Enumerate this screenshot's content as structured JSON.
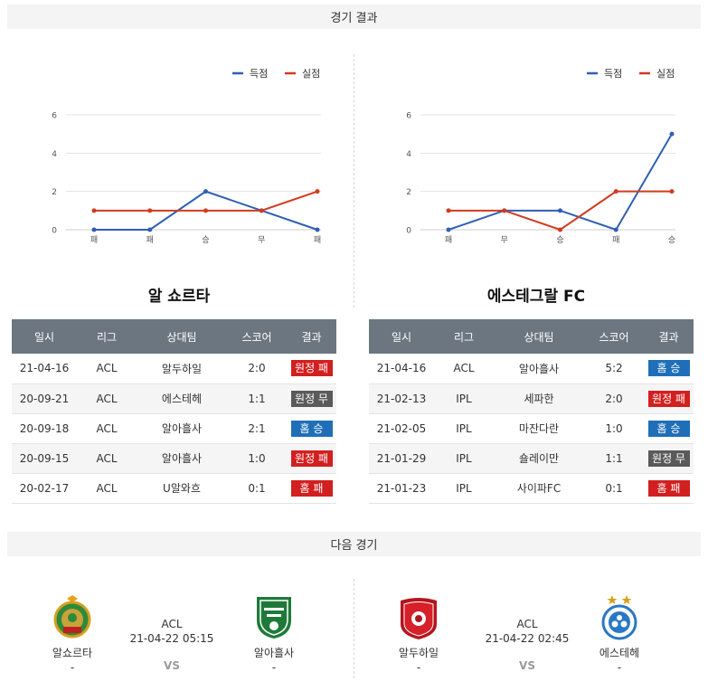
{
  "sections": {
    "results_title": "경기 결과",
    "next_title": "다음 경기"
  },
  "legend": {
    "scored": "득점",
    "conceded": "실점"
  },
  "colors": {
    "scored": "#2f5fb3",
    "conceded": "#d23a1e",
    "lose": "#d21f1f",
    "draw": "#5a5a5a",
    "win": "#1f6fb8"
  },
  "teams": [
    {
      "name": "알 쇼르타",
      "chart_data": {
        "type": "line",
        "categories": [
          "패",
          "패",
          "승",
          "무",
          "패"
        ],
        "series": [
          {
            "name": "득점",
            "values": [
              0,
              0,
              2,
              1,
              0
            ]
          },
          {
            "name": "실점",
            "values": [
              1,
              1,
              1,
              1,
              2
            ]
          }
        ],
        "y_ticks": [
          0,
          2,
          4,
          6
        ],
        "ylim": [
          0,
          6
        ],
        "legend_position": "top-right",
        "grid": true
      },
      "table": {
        "headers": [
          "일시",
          "리그",
          "상대팀",
          "스코어",
          "결과"
        ],
        "rows": [
          {
            "date": "21-04-16",
            "league": "ACL",
            "opponent": "알두하일",
            "score": "2:0",
            "result": "원정 패",
            "type": "lose"
          },
          {
            "date": "20-09-21",
            "league": "ACL",
            "opponent": "에스테헤",
            "score": "1:1",
            "result": "원정 무",
            "type": "draw"
          },
          {
            "date": "20-09-18",
            "league": "ACL",
            "opponent": "알아흘사",
            "score": "2:1",
            "result": "홈 승",
            "type": "win"
          },
          {
            "date": "20-09-15",
            "league": "ACL",
            "opponent": "알아흘사",
            "score": "1:0",
            "result": "원정 패",
            "type": "lose"
          },
          {
            "date": "20-02-17",
            "league": "ACL",
            "opponent": "U알와흐",
            "score": "0:1",
            "result": "홈 패",
            "type": "lose"
          }
        ]
      }
    },
    {
      "name": "에스테그랄 FC",
      "chart_data": {
        "type": "line",
        "categories": [
          "패",
          "무",
          "승",
          "패",
          "승"
        ],
        "series": [
          {
            "name": "득점",
            "values": [
              0,
              1,
              1,
              0,
              5
            ]
          },
          {
            "name": "실점",
            "values": [
              1,
              1,
              0,
              2,
              2
            ]
          }
        ],
        "y_ticks": [
          0,
          2,
          4,
          6
        ],
        "ylim": [
          0,
          6
        ],
        "legend_position": "top-right",
        "grid": true
      },
      "table": {
        "headers": [
          "일시",
          "리그",
          "상대팀",
          "스코어",
          "결과"
        ],
        "rows": [
          {
            "date": "21-04-16",
            "league": "ACL",
            "opponent": "알아흘사",
            "score": "5:2",
            "result": "홈 승",
            "type": "win"
          },
          {
            "date": "21-02-13",
            "league": "IPL",
            "opponent": "세파한",
            "score": "2:0",
            "result": "원정 패",
            "type": "lose"
          },
          {
            "date": "21-02-05",
            "league": "IPL",
            "opponent": "마잔다란",
            "score": "1:0",
            "result": "홈 승",
            "type": "win"
          },
          {
            "date": "21-01-29",
            "league": "IPL",
            "opponent": "숄레이만",
            "score": "1:1",
            "result": "원정 무",
            "type": "draw"
          },
          {
            "date": "21-01-23",
            "league": "IPL",
            "opponent": "사이파FC",
            "score": "0:1",
            "result": "홈 패",
            "type": "lose"
          }
        ]
      }
    }
  ],
  "next_matches": [
    {
      "home": "알쇼르타",
      "home_extra": "-",
      "away": "알아흘사",
      "away_extra": "-",
      "league": "ACL",
      "datetime": "21-04-22 05:15",
      "vs": "VS",
      "home_logo": "al-shorta-crest-icon",
      "away_logo": "al-ahli-crest-icon"
    },
    {
      "home": "알두하일",
      "home_extra": "-",
      "away": "에스테헤",
      "away_extra": "-",
      "league": "ACL",
      "datetime": "21-04-22 02:45",
      "vs": "VS",
      "home_logo": "al-duhail-crest-icon",
      "away_logo": "esteghlal-crest-icon"
    }
  ]
}
